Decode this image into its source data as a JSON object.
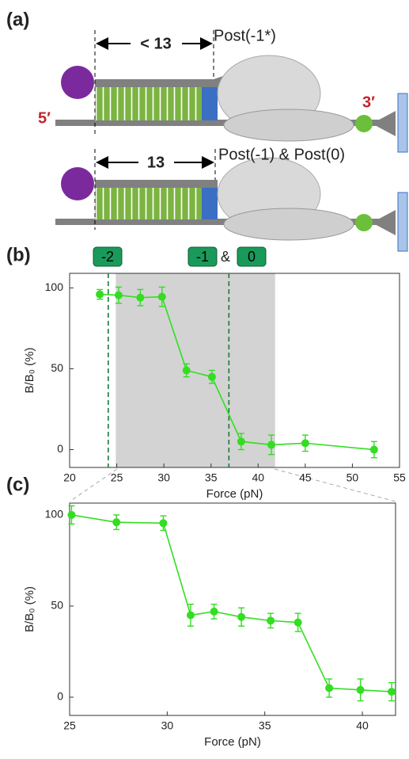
{
  "diagram": {
    "panel_label": "(a)",
    "top_state": "Post(-1*)",
    "top_distance": "< 13",
    "five_prime": "5′",
    "three_prime": "3′",
    "bottom_state": "Post(-1) & Post(0)",
    "bottom_distance": "13"
  },
  "chart_data": [
    {
      "type": "line",
      "panel_label": "(b)",
      "x_label": "Force (pN)",
      "y_label": "B/B₀ (%)",
      "annotations": [
        "-2",
        "-1",
        "&",
        "0"
      ],
      "shaded_region": [
        24.9,
        41.8
      ],
      "dashed_lines": [
        24.1,
        36.9
      ],
      "xlim": [
        20,
        55
      ],
      "ylim": [
        -11,
        109
      ],
      "xticks": [
        20,
        25,
        30,
        35,
        40,
        45,
        50,
        55
      ],
      "yticks": [
        0,
        50,
        100
      ],
      "series": [
        {
          "color": "#33dd22",
          "x": [
            23.2,
            25.2,
            27.5,
            29.8,
            32.4,
            35.1,
            38.2,
            41.4,
            45,
            52.3
          ],
          "values": [
            96,
            95.5,
            94,
            94.5,
            49,
            45,
            5,
            3,
            4,
            0
          ],
          "errors": [
            3,
            5,
            5,
            6,
            4,
            4,
            5,
            6,
            5,
            5
          ]
        }
      ]
    },
    {
      "type": "line",
      "panel_label": "(c)",
      "x_label": "Force (pN)",
      "y_label": "B/B₀ (%)",
      "xlim": [
        25,
        41.7
      ],
      "ylim": [
        -10,
        106.5
      ],
      "xticks": [
        25,
        30,
        35,
        40
      ],
      "yticks": [
        0,
        50,
        100
      ],
      "series": [
        {
          "color": "#33dd22",
          "x": [
            25.1,
            27.4,
            29.8,
            31.2,
            32.4,
            33.8,
            35.3,
            36.7,
            38.3,
            39.9,
            41.5
          ],
          "values": [
            100,
            96,
            95.5,
            45,
            47,
            44,
            42,
            41,
            5,
            4,
            3
          ],
          "errors": [
            5,
            4,
            4,
            6,
            4,
            5,
            4,
            5,
            5,
            6,
            5
          ]
        }
      ]
    }
  ]
}
